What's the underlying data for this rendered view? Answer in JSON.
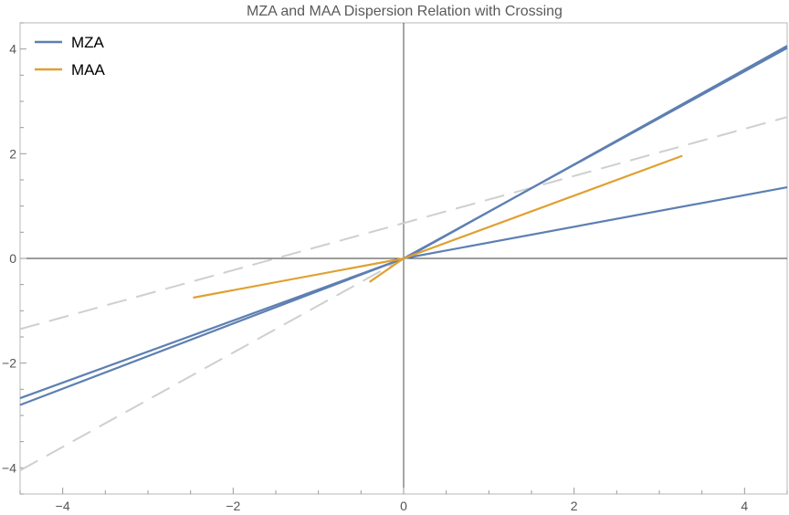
{
  "chart_data": {
    "type": "line",
    "title": "MZA and MAA Dispersion Relation with Crossing",
    "xlabel": "",
    "ylabel": "",
    "xlim": [
      -4.5,
      4.5
    ],
    "ylim": [
      -4.5,
      4.5
    ],
    "x_ticks": [
      -4,
      -2,
      0,
      2,
      4
    ],
    "y_ticks": [
      -4,
      -2,
      0,
      2,
      4
    ],
    "x_tick_labels": [
      "−4",
      "−2",
      "0",
      "2",
      "4"
    ],
    "y_tick_labels": [
      "−4",
      "−2",
      "0",
      "2",
      "4"
    ],
    "grid": false,
    "legend_position": "top-left",
    "legend": [
      {
        "label": "MZA",
        "color": "#5d7fb2"
      },
      {
        "label": "MAA",
        "color": "#e0a030"
      }
    ],
    "series": [
      {
        "group": "MZA",
        "color": "#5d7fb2",
        "style": "solid",
        "points": [
          [
            0,
            0
          ],
          [
            4.5,
            1.36
          ]
        ]
      },
      {
        "group": "MZA",
        "color": "#5d7fb2",
        "style": "solid",
        "points": [
          [
            0.05,
            0.03
          ],
          [
            4.5,
            4.06
          ]
        ]
      },
      {
        "group": "MZA",
        "color": "#5d7fb2",
        "style": "solid",
        "points": [
          [
            0,
            0
          ],
          [
            4.5,
            4.02
          ]
        ]
      },
      {
        "group": "MZA",
        "color": "#5d7fb2",
        "style": "solid",
        "points": [
          [
            0,
            0
          ],
          [
            -4.5,
            -2.67
          ]
        ]
      },
      {
        "group": "MZA",
        "color": "#5d7fb2",
        "style": "solid",
        "points": [
          [
            0,
            0
          ],
          [
            -4.5,
            -2.8
          ]
        ]
      },
      {
        "group": "MAA",
        "color": "#e0a030",
        "style": "solid",
        "points": [
          [
            -2.47,
            -0.75
          ],
          [
            0,
            0
          ]
        ]
      },
      {
        "group": "MAA",
        "color": "#e0a030",
        "style": "solid",
        "points": [
          [
            0,
            0
          ],
          [
            3.27,
            1.96
          ]
        ]
      },
      {
        "group": "MAA",
        "color": "#e0a030",
        "style": "solid",
        "points": [
          [
            -0.4,
            -0.45
          ],
          [
            0,
            0
          ]
        ]
      },
      {
        "group": "",
        "color": "#cfcfcf",
        "style": "dashed",
        "points": [
          [
            -4.5,
            -1.35
          ],
          [
            4.5,
            2.7
          ]
        ]
      },
      {
        "group": "",
        "color": "#cfcfcf",
        "style": "dashed",
        "points": [
          [
            -4.5,
            -4.05
          ],
          [
            0,
            0
          ]
        ]
      }
    ]
  }
}
